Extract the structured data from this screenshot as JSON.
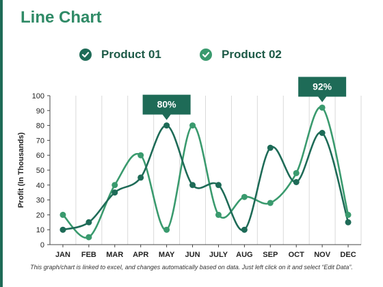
{
  "title": "Line Chart",
  "footnote": "This graph/chart is linked to excel, and changes automatically based on data. Just left click on it and select “Edit Data”.",
  "colors": {
    "product_01": "#1e6b57",
    "product_02": "#3a9a6e",
    "title": "#2f8a66",
    "callout": "#1e6b57"
  },
  "legend": [
    {
      "label": "Product 01",
      "icon": "check-circle-icon"
    },
    {
      "label": "Product 02",
      "icon": "check-circle-icon"
    }
  ],
  "chart_data": {
    "type": "line",
    "smooth": true,
    "categories": [
      "JAN",
      "FEB",
      "MAR",
      "APR",
      "MAY",
      "JUN",
      "JULY",
      "AUG",
      "SEP",
      "OCT",
      "NOV",
      "DEC"
    ],
    "series": [
      {
        "name": "Product 01",
        "values": [
          10,
          15,
          35,
          45,
          80,
          40,
          40,
          10,
          65,
          42,
          75,
          15
        ]
      },
      {
        "name": "Product 02",
        "values": [
          20,
          5,
          40,
          60,
          10,
          80,
          20,
          32,
          28,
          48,
          92,
          20
        ]
      }
    ],
    "ylabel": "Profit (In Thousands)",
    "xlabel": "",
    "ylim": [
      0,
      100
    ],
    "yticks": [
      0,
      10,
      20,
      30,
      40,
      50,
      60,
      70,
      80,
      90,
      100
    ],
    "grid": "vertical",
    "legend_position": "top",
    "annotations": [
      {
        "text": "80%",
        "series": 0,
        "category": "MAY"
      },
      {
        "text": "92%",
        "series": 1,
        "category": "NOV"
      }
    ]
  }
}
